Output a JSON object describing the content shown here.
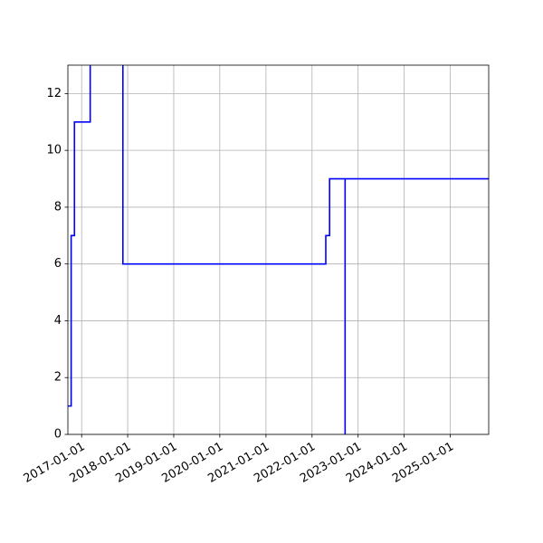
{
  "chart_data": {
    "type": "line",
    "title": "",
    "xlabel": "",
    "ylabel": "",
    "grid": true,
    "xlim": [
      "2016-09-14",
      "2025-11-01"
    ],
    "ylim": [
      0,
      13
    ],
    "x_ticks": [
      "2017-01-01",
      "2018-01-01",
      "2019-01-01",
      "2020-01-01",
      "2021-01-01",
      "2022-01-01",
      "2023-01-01",
      "2024-01-01",
      "2025-01-01"
    ],
    "y_ticks": [
      0,
      2,
      4,
      6,
      8,
      10,
      12
    ],
    "series": [
      {
        "color": "#0000ff",
        "step": "post",
        "points": [
          {
            "x": "2016-09-14",
            "y": 1
          },
          {
            "x": "2016-10-10",
            "y": 7
          },
          {
            "x": "2016-11-05",
            "y": 11
          },
          {
            "x": "2017-03-10",
            "y": 14
          },
          {
            "x": "2017-11-24",
            "y": 6
          },
          {
            "x": "2022-04-20",
            "y": 7
          },
          {
            "x": "2022-05-20",
            "y": 9
          },
          {
            "x": "2022-09-20",
            "y": 0
          },
          {
            "x": "2022-09-20",
            "y": 9
          },
          {
            "x": "2025-11-01",
            "y": 9
          }
        ]
      }
    ]
  }
}
